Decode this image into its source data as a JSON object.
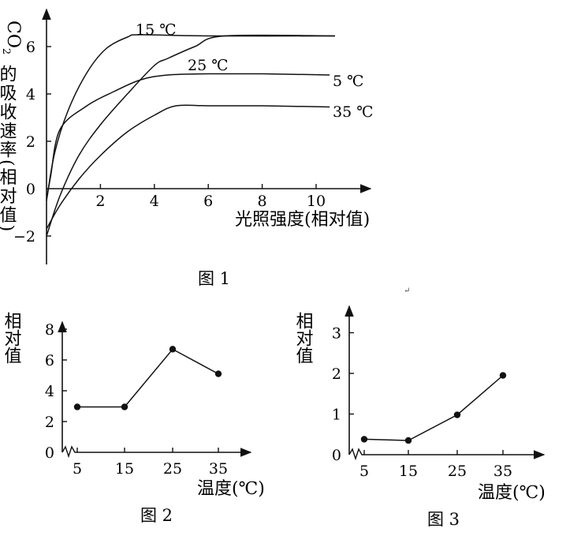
{
  "chart_data": [
    {
      "type": "line",
      "title": "",
      "caption": "图 1",
      "xlabel": "光照强度(相对值)",
      "ylabel_main": "CO",
      "ylabel_sub": "2",
      "ylabel_rest": "的吸收速率(相对值)",
      "xticks": [
        "2",
        "4",
        "6",
        "8",
        "10"
      ],
      "yticks": [
        "−2",
        "0",
        "2",
        "4",
        "6"
      ],
      "xlim": [
        0,
        11.5
      ],
      "ylim": [
        -3,
        7
      ],
      "series": [
        {
          "name": "15 ℃",
          "x": [
            0,
            0.3,
            0.8,
            1.5,
            2.2,
            3.0,
            3.5,
            6.0,
            10.7
          ],
          "y": [
            -0.5,
            1.5,
            3.3,
            4.9,
            5.9,
            6.4,
            6.5,
            6.45,
            6.45
          ]
        },
        {
          "name": "25 ℃",
          "x": [
            0,
            0.5,
            1.2,
            2.0,
            3.0,
            4.0,
            4.5,
            5.5,
            6.6,
            10.7
          ],
          "y": [
            -2.0,
            -0.3,
            1.4,
            2.7,
            4.0,
            5.2,
            5.5,
            6.0,
            6.45,
            6.45
          ]
        },
        {
          "name": "5 ℃",
          "x": [
            0,
            0.15,
            0.5,
            1.5,
            2.5,
            3.5,
            4.5,
            6.0,
            8.0,
            10.5
          ],
          "y": [
            -0.5,
            0.5,
            2.5,
            3.5,
            4.1,
            4.6,
            4.8,
            4.85,
            4.85,
            4.8
          ]
        },
        {
          "name": "35 ℃",
          "x": [
            0,
            0.5,
            1.2,
            2.0,
            3.0,
            4.0,
            4.8,
            6.0,
            8.0,
            10.5
          ],
          "y": [
            -1.7,
            -0.7,
            0.4,
            1.4,
            2.4,
            3.1,
            3.5,
            3.5,
            3.5,
            3.45
          ]
        }
      ]
    },
    {
      "type": "line",
      "title": "",
      "caption": "图 2",
      "xlabel": "温度(℃)",
      "ylabel": "相对值",
      "categories": [
        "5",
        "15",
        "25",
        "35"
      ],
      "yticks": [
        "0",
        "2",
        "4",
        "6",
        "8"
      ],
      "ylim": [
        0,
        9
      ],
      "values": [
        2.95,
        2.95,
        6.7,
        5.1
      ]
    },
    {
      "type": "line",
      "title": "",
      "caption": "图 3",
      "xlabel": "温度(℃)",
      "ylabel": "相对值",
      "categories": [
        "5",
        "15",
        "25",
        "35"
      ],
      "yticks": [
        "0",
        "1",
        "2",
        "3"
      ],
      "ylim": [
        0,
        3.4
      ],
      "values": [
        0.38,
        0.35,
        0.98,
        1.95
      ]
    }
  ]
}
